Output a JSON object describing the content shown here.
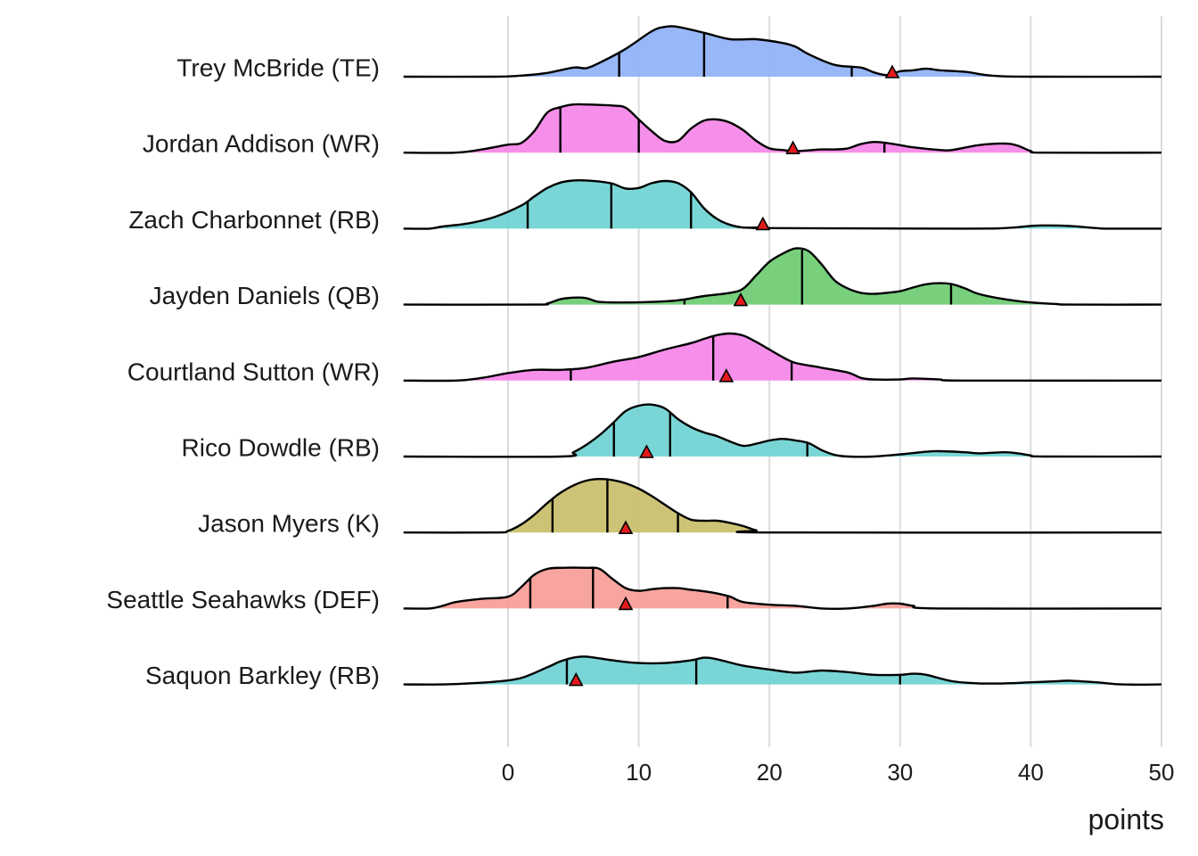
{
  "chart_data": {
    "type": "ridgeline",
    "title": "",
    "xlabel": "points",
    "ylabel": "",
    "xlim": [
      -8,
      50
    ],
    "x_ticks": [
      0,
      10,
      20,
      30,
      40,
      50
    ],
    "x_tick_labels": [
      "0",
      "10",
      "20",
      "30",
      "40",
      "50"
    ],
    "grid": true,
    "marker_color": "#e31a1c",
    "series": [
      {
        "name": "Trey McBride (TE)",
        "color": "#8fb1f7",
        "quantiles": [
          8.5,
          15.0,
          26.3
        ],
        "marker": 29.4,
        "density": [
          [
            -8,
            0
          ],
          [
            -1,
            0
          ],
          [
            1,
            0.02
          ],
          [
            3,
            0.07
          ],
          [
            5,
            0.17
          ],
          [
            6,
            0.16
          ],
          [
            7,
            0.26
          ],
          [
            9,
            0.52
          ],
          [
            11,
            0.85
          ],
          [
            12,
            0.93
          ],
          [
            13,
            0.93
          ],
          [
            15,
            0.82
          ],
          [
            17,
            0.7
          ],
          [
            19,
            0.7
          ],
          [
            21,
            0.63
          ],
          [
            22,
            0.56
          ],
          [
            23,
            0.42
          ],
          [
            25,
            0.22
          ],
          [
            27,
            0.17
          ],
          [
            28,
            0.08
          ],
          [
            29,
            0.03
          ],
          [
            30,
            0.1
          ],
          [
            31,
            0.12
          ],
          [
            32,
            0.15
          ],
          [
            33,
            0.12
          ],
          [
            35,
            0.09
          ],
          [
            37,
            0.02
          ],
          [
            40,
            0
          ],
          [
            50,
            0
          ]
        ]
      },
      {
        "name": "Jordan Addison (WR)",
        "color": "#f585e8",
        "quantiles": [
          4.0,
          10.0,
          28.8
        ],
        "marker": 21.8,
        "density": [
          [
            -8,
            0
          ],
          [
            -4,
            0
          ],
          [
            -2,
            0.06
          ],
          [
            0,
            0.15
          ],
          [
            1,
            0.18
          ],
          [
            2,
            0.4
          ],
          [
            3,
            0.75
          ],
          [
            4,
            0.85
          ],
          [
            5,
            0.9
          ],
          [
            6,
            0.9
          ],
          [
            8,
            0.88
          ],
          [
            9,
            0.84
          ],
          [
            10,
            0.62
          ],
          [
            11,
            0.4
          ],
          [
            12,
            0.22
          ],
          [
            13,
            0.22
          ],
          [
            14,
            0.45
          ],
          [
            15,
            0.6
          ],
          [
            16,
            0.62
          ],
          [
            17,
            0.56
          ],
          [
            18,
            0.42
          ],
          [
            19,
            0.22
          ],
          [
            20,
            0.08
          ],
          [
            21,
            0.05
          ],
          [
            22,
            0.03
          ],
          [
            24,
            0.06
          ],
          [
            25,
            0.06
          ],
          [
            26,
            0.08
          ],
          [
            27,
            0.16
          ],
          [
            28,
            0.2
          ],
          [
            29,
            0.18
          ],
          [
            30,
            0.14
          ],
          [
            31,
            0.1
          ],
          [
            33,
            0.05
          ],
          [
            34,
            0.05
          ],
          [
            36,
            0.14
          ],
          [
            38,
            0.17
          ],
          [
            39,
            0.13
          ],
          [
            40,
            0.03
          ],
          [
            41,
            0
          ],
          [
            50,
            0
          ]
        ]
      },
      {
        "name": "Zach Charbonnet (RB)",
        "color": "#6fd2d3",
        "quantiles": [
          1.5,
          7.9,
          14.0
        ],
        "marker": 19.5,
        "density": [
          [
            -8,
            0
          ],
          [
            -6,
            0
          ],
          [
            -5,
            0.04
          ],
          [
            -3,
            0.1
          ],
          [
            -1,
            0.22
          ],
          [
            1,
            0.43
          ],
          [
            2,
            0.6
          ],
          [
            3,
            0.76
          ],
          [
            4,
            0.86
          ],
          [
            5,
            0.9
          ],
          [
            6,
            0.9
          ],
          [
            7,
            0.88
          ],
          [
            8,
            0.84
          ],
          [
            9,
            0.75
          ],
          [
            10,
            0.76
          ],
          [
            11,
            0.85
          ],
          [
            12,
            0.89
          ],
          [
            13,
            0.85
          ],
          [
            14,
            0.68
          ],
          [
            15,
            0.38
          ],
          [
            16,
            0.18
          ],
          [
            17,
            0.07
          ],
          [
            18,
            0.02
          ],
          [
            19,
            0.02
          ],
          [
            20,
            0.01
          ],
          [
            35,
            0
          ],
          [
            38,
            0.01
          ],
          [
            40,
            0.05
          ],
          [
            41,
            0.06
          ],
          [
            43,
            0.05
          ],
          [
            45,
            0.01
          ],
          [
            46,
            0
          ],
          [
            50,
            0
          ]
        ]
      },
      {
        "name": "Jayden Daniels (QB)",
        "color": "#6ccc72",
        "quantiles": [
          13.5,
          22.5,
          33.9
        ],
        "marker": 17.8,
        "density": [
          [
            -8,
            0
          ],
          [
            2,
            0
          ],
          [
            3,
            0.02
          ],
          [
            4,
            0.1
          ],
          [
            5,
            0.13
          ],
          [
            6,
            0.12
          ],
          [
            7,
            0.05
          ],
          [
            9,
            0.04
          ],
          [
            11,
            0.05
          ],
          [
            13,
            0.08
          ],
          [
            15,
            0.16
          ],
          [
            17,
            0.22
          ],
          [
            18,
            0.3
          ],
          [
            19,
            0.55
          ],
          [
            20,
            0.8
          ],
          [
            21,
            0.95
          ],
          [
            22,
            1.05
          ],
          [
            23,
            1.0
          ],
          [
            24,
            0.75
          ],
          [
            25,
            0.45
          ],
          [
            26,
            0.3
          ],
          [
            27,
            0.22
          ],
          [
            28,
            0.2
          ],
          [
            29,
            0.22
          ],
          [
            30,
            0.25
          ],
          [
            31,
            0.32
          ],
          [
            32,
            0.38
          ],
          [
            33,
            0.4
          ],
          [
            34,
            0.38
          ],
          [
            35,
            0.3
          ],
          [
            36,
            0.2
          ],
          [
            38,
            0.1
          ],
          [
            40,
            0.04
          ],
          [
            42,
            0.01
          ],
          [
            43,
            0
          ],
          [
            50,
            0
          ]
        ]
      },
      {
        "name": "Courtland Sutton (WR)",
        "color": "#f585e8",
        "quantiles": [
          4.8,
          15.7,
          21.7
        ],
        "marker": 16.7,
        "density": [
          [
            -8,
            0
          ],
          [
            -4,
            0
          ],
          [
            -2,
            0.05
          ],
          [
            0,
            0.14
          ],
          [
            2,
            0.2
          ],
          [
            4,
            0.2
          ],
          [
            6,
            0.24
          ],
          [
            8,
            0.35
          ],
          [
            10,
            0.44
          ],
          [
            12,
            0.58
          ],
          [
            14,
            0.7
          ],
          [
            15,
            0.78
          ],
          [
            16,
            0.85
          ],
          [
            17,
            0.88
          ],
          [
            18,
            0.84
          ],
          [
            19,
            0.72
          ],
          [
            20,
            0.58
          ],
          [
            21,
            0.44
          ],
          [
            22,
            0.33
          ],
          [
            24,
            0.24
          ],
          [
            26,
            0.15
          ],
          [
            27,
            0.05
          ],
          [
            28,
            0.02
          ],
          [
            30,
            0.02
          ],
          [
            31,
            0.04
          ],
          [
            33,
            0.02
          ],
          [
            35,
            0
          ],
          [
            50,
            0
          ]
        ]
      },
      {
        "name": "Rico Dowdle (RB)",
        "color": "#6fd2d3",
        "quantiles": [
          8.1,
          12.4,
          22.9
        ],
        "marker": 10.6,
        "density": [
          [
            -8,
            0
          ],
          [
            4,
            0
          ],
          [
            5,
            0.08
          ],
          [
            6,
            0.22
          ],
          [
            7,
            0.4
          ],
          [
            8,
            0.62
          ],
          [
            9,
            0.85
          ],
          [
            10,
            0.95
          ],
          [
            11,
            0.97
          ],
          [
            12,
            0.9
          ],
          [
            13,
            0.7
          ],
          [
            14,
            0.55
          ],
          [
            15,
            0.45
          ],
          [
            16,
            0.38
          ],
          [
            17,
            0.28
          ],
          [
            18,
            0.2
          ],
          [
            19,
            0.24
          ],
          [
            20,
            0.3
          ],
          [
            21,
            0.33
          ],
          [
            22,
            0.3
          ],
          [
            23,
            0.25
          ],
          [
            24,
            0.12
          ],
          [
            25,
            0.03
          ],
          [
            26,
            0
          ],
          [
            28,
            0
          ],
          [
            30,
            0.04
          ],
          [
            32,
            0.09
          ],
          [
            33,
            0.1
          ],
          [
            35,
            0.08
          ],
          [
            36,
            0.06
          ],
          [
            38,
            0.08
          ],
          [
            39,
            0.06
          ],
          [
            40,
            0.02
          ],
          [
            41,
            0
          ],
          [
            50,
            0
          ]
        ]
      },
      {
        "name": "Jason Myers (K)",
        "color": "#c9be6a",
        "quantiles": [
          3.4,
          7.6,
          13.0
        ],
        "marker": 9.0,
        "density": [
          [
            -8,
            0
          ],
          [
            -1,
            0
          ],
          [
            0,
            0.03
          ],
          [
            1,
            0.15
          ],
          [
            2,
            0.33
          ],
          [
            3,
            0.55
          ],
          [
            4,
            0.74
          ],
          [
            5,
            0.88
          ],
          [
            6,
            0.97
          ],
          [
            7,
            1.0
          ],
          [
            8,
            0.98
          ],
          [
            9,
            0.92
          ],
          [
            10,
            0.82
          ],
          [
            11,
            0.68
          ],
          [
            12,
            0.52
          ],
          [
            13,
            0.36
          ],
          [
            14,
            0.24
          ],
          [
            15,
            0.22
          ],
          [
            16,
            0.22
          ],
          [
            17,
            0.18
          ],
          [
            18,
            0.12
          ],
          [
            19,
            0.04
          ],
          [
            20,
            0
          ],
          [
            50,
            0
          ]
        ]
      },
      {
        "name": "Seattle Seahawks (DEF)",
        "color": "#f69d96",
        "quantiles": [
          1.7,
          6.5,
          16.8
        ],
        "marker": 9.0,
        "density": [
          [
            -8,
            0
          ],
          [
            -6,
            0
          ],
          [
            -5,
            0.05
          ],
          [
            -4,
            0.12
          ],
          [
            -2,
            0.18
          ],
          [
            0,
            0.22
          ],
          [
            1,
            0.4
          ],
          [
            2,
            0.63
          ],
          [
            3,
            0.74
          ],
          [
            4,
            0.76
          ],
          [
            6,
            0.76
          ],
          [
            7,
            0.74
          ],
          [
            8,
            0.55
          ],
          [
            9,
            0.38
          ],
          [
            10,
            0.33
          ],
          [
            11,
            0.36
          ],
          [
            12,
            0.38
          ],
          [
            13,
            0.38
          ],
          [
            14,
            0.35
          ],
          [
            15,
            0.32
          ],
          [
            16,
            0.28
          ],
          [
            17,
            0.22
          ],
          [
            18,
            0.12
          ],
          [
            20,
            0.07
          ],
          [
            22,
            0.05
          ],
          [
            24,
            0
          ],
          [
            26,
            0
          ],
          [
            28,
            0.05
          ],
          [
            29,
            0.09
          ],
          [
            30,
            0.09
          ],
          [
            31,
            0.05
          ],
          [
            33,
            0
          ],
          [
            50,
            0
          ]
        ]
      },
      {
        "name": "Saquon Barkley (RB)",
        "color": "#6fd2d3",
        "quantiles": [
          4.5,
          14.4,
          30.0
        ],
        "marker": 5.2,
        "density": [
          [
            -8,
            0
          ],
          [
            -5,
            0
          ],
          [
            -3,
            0.02
          ],
          [
            -1,
            0.05
          ],
          [
            1,
            0.12
          ],
          [
            3,
            0.32
          ],
          [
            4,
            0.43
          ],
          [
            5,
            0.5
          ],
          [
            6,
            0.52
          ],
          [
            8,
            0.45
          ],
          [
            10,
            0.4
          ],
          [
            12,
            0.4
          ],
          [
            14,
            0.45
          ],
          [
            15,
            0.5
          ],
          [
            16,
            0.47
          ],
          [
            18,
            0.35
          ],
          [
            20,
            0.28
          ],
          [
            22,
            0.22
          ],
          [
            24,
            0.26
          ],
          [
            26,
            0.23
          ],
          [
            28,
            0.18
          ],
          [
            30,
            0.18
          ],
          [
            31,
            0.2
          ],
          [
            32,
            0.18
          ],
          [
            34,
            0.06
          ],
          [
            36,
            0.02
          ],
          [
            38,
            0.02
          ],
          [
            40,
            0.04
          ],
          [
            42,
            0.06
          ],
          [
            43,
            0.07
          ],
          [
            45,
            0.04
          ],
          [
            47,
            0
          ],
          [
            50,
            0
          ]
        ]
      }
    ]
  }
}
